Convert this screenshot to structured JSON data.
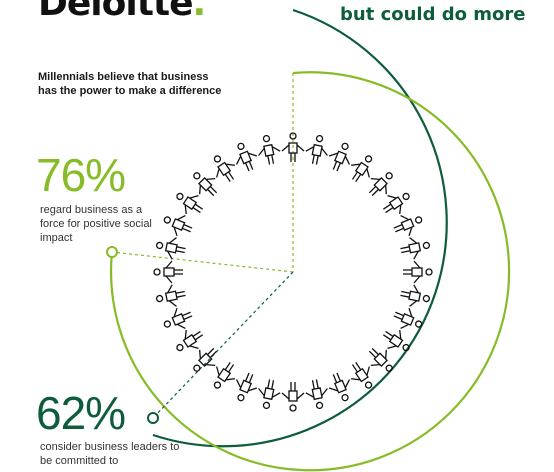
{
  "brand": {
    "name": "Deloitte",
    "dot": ".",
    "accent": "#86bc25",
    "dark_green": "#0d5d3a"
  },
  "headline": "but could do more",
  "intro": "Millennials believe that business has the power to make a difference",
  "stats": [
    {
      "value": "76%",
      "description": "regard business as a force for positive social impact",
      "color": "#86bc25"
    },
    {
      "value": "62%",
      "description": "consider business leaders to be committed to",
      "color": "#0d5d3a"
    }
  ],
  "graphic": {
    "figure_icon": "person-icon",
    "figure_count": 32
  }
}
